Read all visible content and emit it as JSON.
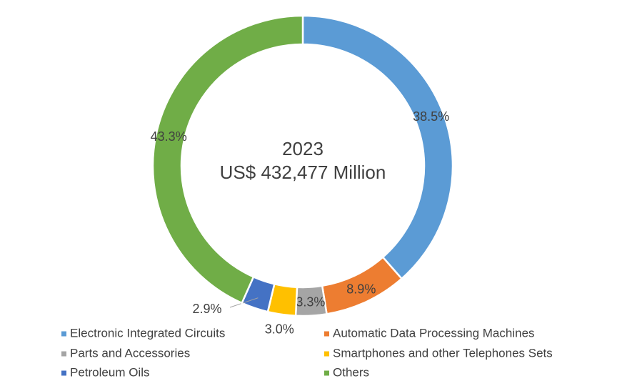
{
  "chart_data": {
    "type": "donut",
    "center_text": [
      "2023",
      "US$ 432,477 Million"
    ],
    "categories": [
      "Electronic Integrated Circuits",
      "Automatic Data Processing Machines",
      "Parts and Accessories",
      "Smartphones and other Telephones Sets",
      "Petroleum Oils",
      "Others"
    ],
    "values": [
      38.5,
      8.9,
      3.3,
      3.0,
      2.9,
      43.3
    ],
    "value_labels": [
      "38.5%",
      "8.9%",
      "3.3%",
      "3.0%",
      "2.9%",
      "43.3%"
    ],
    "colors": [
      "#5b9bd5",
      "#ed7d31",
      "#a5a5a5",
      "#ffc000",
      "#4472c4",
      "#70ad47"
    ],
    "legend": "bottom"
  }
}
